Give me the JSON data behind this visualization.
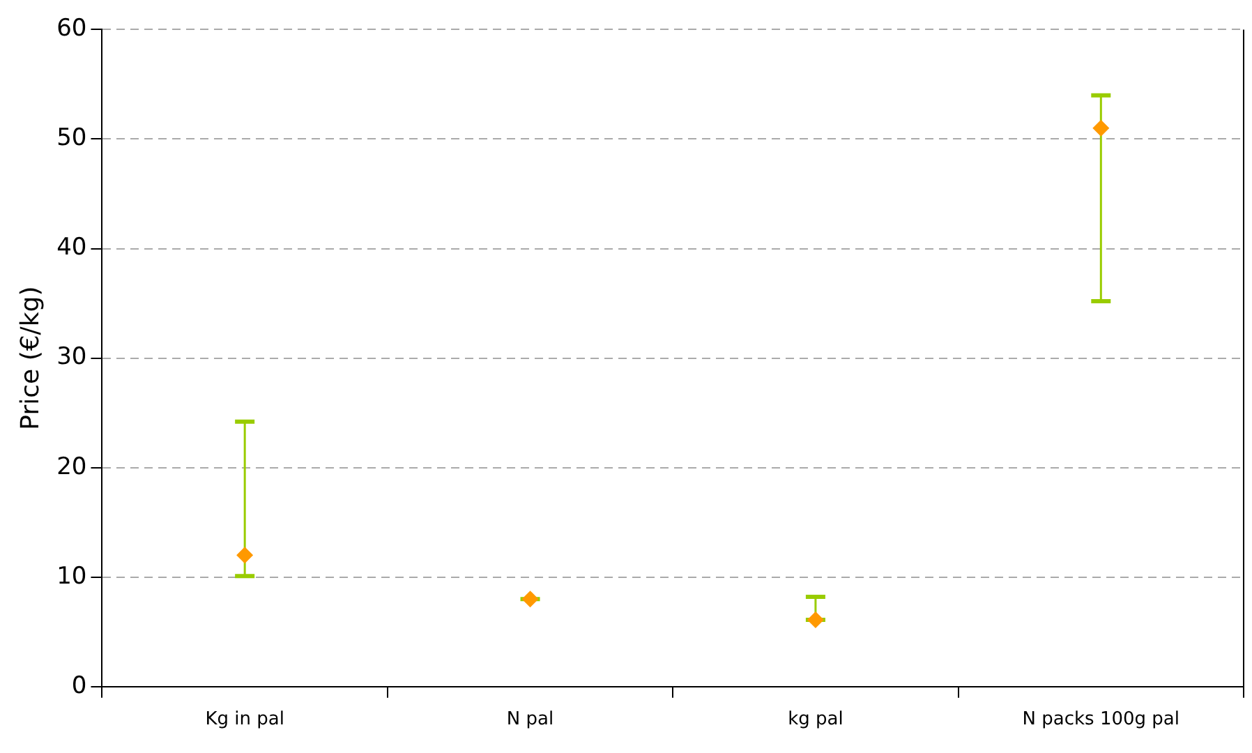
{
  "chart_data": {
    "type": "scatter",
    "ylabel": "Price (€/kg)",
    "categories": [
      "Kg in pal",
      "N pal",
      "kg pal",
      "N packs 100g pal"
    ],
    "values": [
      12,
      8,
      6.1,
      51
    ],
    "errors": [
      [
        10.1,
        24.2
      ],
      [
        8,
        8
      ],
      [
        6.1,
        8.2
      ],
      [
        35.2,
        54
      ]
    ],
    "color": "#ff9900",
    "marker": "diamond",
    "ylim": [
      0,
      60
    ],
    "yticks": [
      0,
      10,
      20,
      30,
      40,
      50,
      60
    ],
    "grid": "y",
    "legend": false
  }
}
